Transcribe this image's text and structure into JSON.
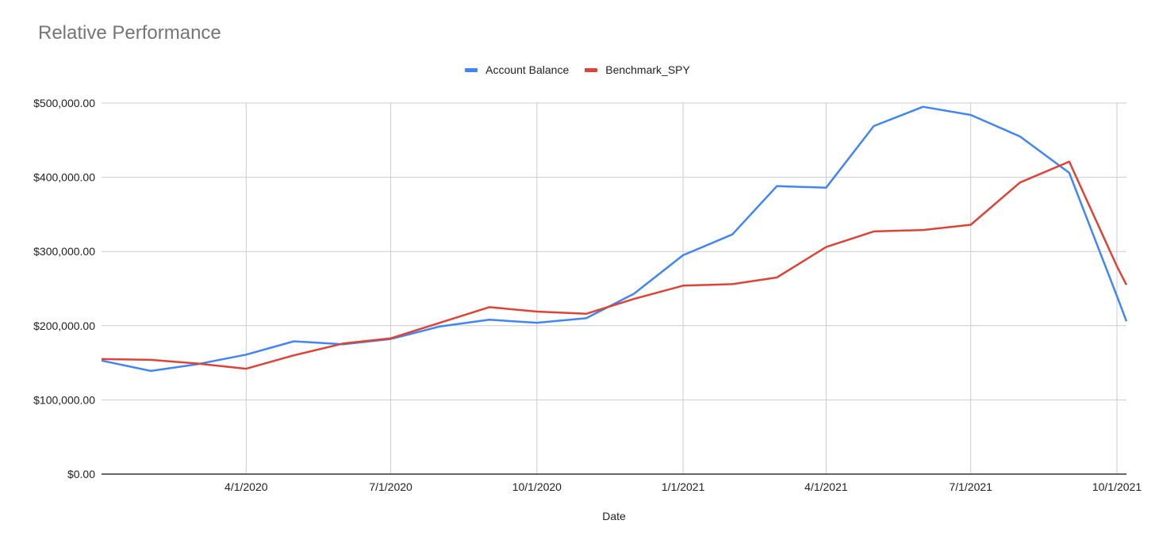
{
  "chart_data": {
    "type": "line",
    "title": "Relative Performance",
    "xlabel": "Date",
    "ylabel": "",
    "ylim": [
      0,
      500000
    ],
    "yticks": [
      0,
      100000,
      200000,
      300000,
      400000,
      500000
    ],
    "ytick_labels": [
      "$0.00",
      "$100,000.00",
      "$200,000.00",
      "$300,000.00",
      "$400,000.00",
      "$500,000.00"
    ],
    "xlim": [
      "2020-01-01",
      "2021-10-07"
    ],
    "xticks": [
      "2020-04-01",
      "2020-07-01",
      "2020-10-01",
      "2021-01-01",
      "2021-04-01",
      "2021-07-01",
      "2021-10-01"
    ],
    "xtick_labels": [
      "4/1/2020",
      "7/1/2020",
      "10/1/2020",
      "1/1/2021",
      "4/1/2021",
      "7/1/2021",
      "10/1/2021"
    ],
    "grid": true,
    "legend_position": "top",
    "x": [
      "2020-01-01",
      "2020-02-01",
      "2020-03-01",
      "2020-04-01",
      "2020-05-01",
      "2020-06-01",
      "2020-07-01",
      "2020-08-01",
      "2020-09-01",
      "2020-10-01",
      "2020-11-01",
      "2020-12-01",
      "2021-01-01",
      "2021-02-01",
      "2021-03-01",
      "2021-04-01",
      "2021-05-01",
      "2021-06-01",
      "2021-07-01",
      "2021-08-01",
      "2021-09-01",
      "2021-10-01",
      "2021-10-07"
    ],
    "series": [
      {
        "name": "Account Balance",
        "color": "#4285f4",
        "values": [
          153000,
          139000,
          148000,
          161000,
          179000,
          175000,
          182000,
          199000,
          208000,
          204000,
          210000,
          243000,
          295000,
          323000,
          388000,
          386000,
          469000,
          495000,
          484000,
          455000,
          406000,
          240000,
          206000
        ]
      },
      {
        "name": "Benchmark_SPY",
        "color": "#db4437",
        "values": [
          155000,
          154000,
          149000,
          142000,
          160000,
          176000,
          183000,
          204000,
          225000,
          219000,
          216000,
          236000,
          254000,
          256000,
          265000,
          306000,
          327000,
          329000,
          336000,
          393000,
          421000,
          280000,
          255000
        ]
      }
    ]
  }
}
